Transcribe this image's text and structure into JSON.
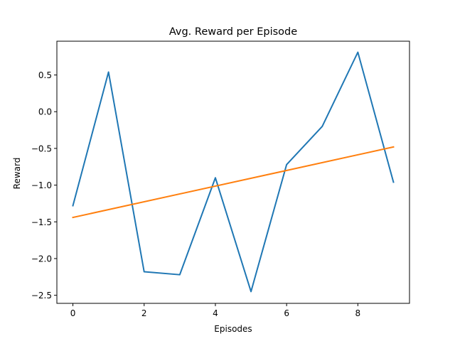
{
  "chart_data": {
    "type": "line",
    "title": "Avg. Reward per Episode",
    "xlabel": "Episodes",
    "ylabel": "Reward",
    "xlim": [
      -0.45,
      9.45
    ],
    "ylim": [
      -2.61,
      0.96
    ],
    "xticks": [
      0,
      2,
      4,
      6,
      8
    ],
    "xtick_labels": [
      "0",
      "2",
      "4",
      "6",
      "8"
    ],
    "yticks": [
      -2.5,
      -2.0,
      -1.5,
      -1.0,
      -0.5,
      0.0,
      0.5
    ],
    "ytick_labels": [
      "−2.5",
      "−2.0",
      "−1.5",
      "−1.0",
      "−0.5",
      "0.0",
      "0.5"
    ],
    "grid": false,
    "series": [
      {
        "color": "#1f77b4",
        "x": [
          0,
          1,
          2,
          3,
          4,
          5,
          6,
          7,
          8,
          9
        ],
        "values": [
          -1.28,
          0.54,
          -2.18,
          -2.22,
          -0.9,
          -2.45,
          -0.72,
          -0.2,
          0.81,
          -0.96
        ]
      },
      {
        "color": "#ff7f0e",
        "x": [
          0,
          9
        ],
        "values": [
          -1.44,
          -0.48
        ]
      }
    ]
  }
}
